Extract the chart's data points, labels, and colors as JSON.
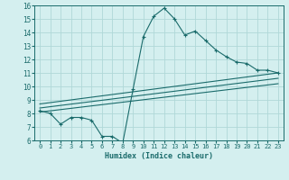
{
  "x": [
    0,
    1,
    2,
    3,
    4,
    5,
    6,
    7,
    8,
    9,
    10,
    11,
    12,
    13,
    14,
    15,
    16,
    17,
    18,
    19,
    20,
    21,
    22,
    23
  ],
  "y_main": [
    8.2,
    8.0,
    7.2,
    7.7,
    7.7,
    7.5,
    6.3,
    6.3,
    5.8,
    9.8,
    13.7,
    15.2,
    15.8,
    15.0,
    13.8,
    14.1,
    13.4,
    12.7,
    12.2,
    11.8,
    11.7,
    11.2,
    11.2,
    11.0
  ],
  "trend_lines": [
    {
      "x0": 0,
      "y0": 8.1,
      "x1": 23,
      "y1": 10.2
    },
    {
      "x0": 0,
      "y0": 8.4,
      "x1": 23,
      "y1": 10.6
    },
    {
      "x0": 0,
      "y0": 8.7,
      "x1": 23,
      "y1": 11.0
    }
  ],
  "line_color": "#1a6b6b",
  "bg_color": "#d4efef",
  "grid_color": "#b0d8d8",
  "xlabel": "Humidex (Indice chaleur)",
  "ylim": [
    6,
    16
  ],
  "xlim": [
    -0.5,
    23.5
  ],
  "yticks": [
    6,
    7,
    8,
    9,
    10,
    11,
    12,
    13,
    14,
    15,
    16
  ],
  "xticks": [
    0,
    1,
    2,
    3,
    4,
    5,
    6,
    7,
    8,
    9,
    10,
    11,
    12,
    13,
    14,
    15,
    16,
    17,
    18,
    19,
    20,
    21,
    22,
    23
  ],
  "tick_fontsize": 5.0,
  "xlabel_fontsize": 6.0
}
